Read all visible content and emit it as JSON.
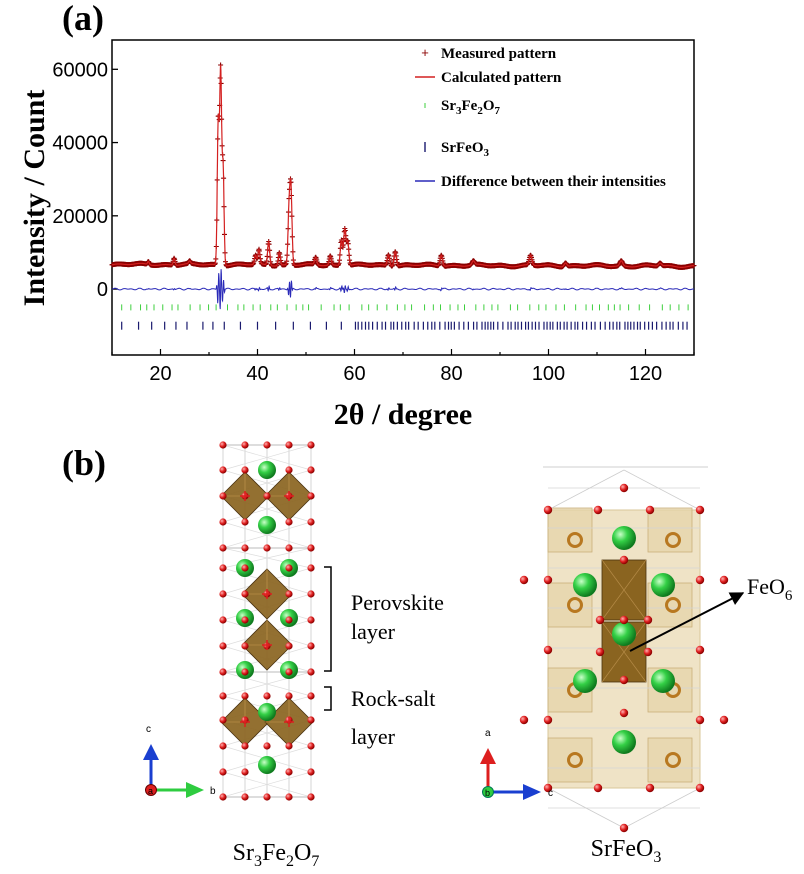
{
  "panel_a": {
    "label": "(a)",
    "chart_data": {
      "type": "line",
      "title": "",
      "xlabel": "2θ / degree",
      "ylabel": "Intensity / Count",
      "xlim": [
        10,
        130
      ],
      "ylim": [
        -18000,
        68000
      ],
      "x_ticks": [
        20,
        40,
        60,
        80,
        100,
        120
      ],
      "y_ticks": [
        0,
        20000,
        40000,
        60000
      ],
      "background_level": 6500,
      "peaks": [
        {
          "x": 17.5,
          "y": 7300
        },
        {
          "x": 22.8,
          "y": 8400
        },
        {
          "x": 26.0,
          "y": 7200
        },
        {
          "x": 31.9,
          "y": 45000
        },
        {
          "x": 32.4,
          "y": 58500
        },
        {
          "x": 32.9,
          "y": 33000
        },
        {
          "x": 39.6,
          "y": 9000
        },
        {
          "x": 40.3,
          "y": 10500
        },
        {
          "x": 42.3,
          "y": 13000
        },
        {
          "x": 44.5,
          "y": 10000
        },
        {
          "x": 46.5,
          "y": 21000
        },
        {
          "x": 46.9,
          "y": 26500
        },
        {
          "x": 52.0,
          "y": 8500
        },
        {
          "x": 55.0,
          "y": 9000
        },
        {
          "x": 57.3,
          "y": 13500
        },
        {
          "x": 58.0,
          "y": 16500
        },
        {
          "x": 58.6,
          "y": 13000
        },
        {
          "x": 67.0,
          "y": 9500
        },
        {
          "x": 68.4,
          "y": 10500
        },
        {
          "x": 77.9,
          "y": 9500
        },
        {
          "x": 84.5,
          "y": 7600
        },
        {
          "x": 96.3,
          "y": 9200
        },
        {
          "x": 103.5,
          "y": 7500
        },
        {
          "x": 115.0,
          "y": 7900
        },
        {
          "x": 123.0,
          "y": 7300
        }
      ],
      "difference_offset": 0,
      "sr3fe2o7_tick_level": -5000,
      "srfeo3_tick_level": -10000,
      "series": [
        {
          "name": "Measured pattern",
          "color": "#8b0000",
          "marker": "+"
        },
        {
          "name": "Calculated pattern",
          "color": "#d42020",
          "marker": "line"
        },
        {
          "name": "Sr3Fe2O7",
          "color": "#3ecf3e",
          "marker": "tick"
        },
        {
          "name": "SrFeO3",
          "color": "#1a1a6e",
          "marker": "tick"
        },
        {
          "name": "Difference between their intensities",
          "color": "#2a2ab8",
          "marker": "line"
        }
      ],
      "legend_placement": "top-right"
    },
    "legend": {
      "measured": "Measured pattern",
      "calculated": "Calculated pattern",
      "sr3_main": "Sr",
      "sr3_sub1": "3",
      "sr3_mid": "Fe",
      "sr3_sub2": "2",
      "sr3_end": "O",
      "sr3_sub3": "7",
      "srfeo3_main": "SrFeO",
      "srfeo3_sub": "3",
      "difference": "Difference between their intensities"
    }
  },
  "panel_b": {
    "label": "(b)",
    "perovskite_label_1": "Perovskite",
    "perovskite_label_2": "layer",
    "rocksalt_label_1": "Rock-salt",
    "rocksalt_label_2": "layer",
    "feo6_main": "FeO",
    "feo6_sub": "6",
    "left_axes": {
      "vertical": "c",
      "horizontal": "b",
      "origin": "a"
    },
    "right_axes": {
      "vertical": "a",
      "horizontal": "c",
      "origin": "b"
    },
    "left_formula": {
      "p1": "Sr",
      "s1": "3",
      "p2": "Fe",
      "s2": "2",
      "p3": "O",
      "s3": "7"
    },
    "right_formula": {
      "p1": "SrFeO",
      "s1": "3"
    },
    "colors": {
      "octahedron": "#8a6420",
      "strontium": "#2ecc40",
      "oxygen": "#dd1f1f",
      "iron": "#b87820",
      "axis_a": "#dd1f1f",
      "axis_b": "#2ecc40",
      "axis_c": "#1a3fd0"
    }
  }
}
